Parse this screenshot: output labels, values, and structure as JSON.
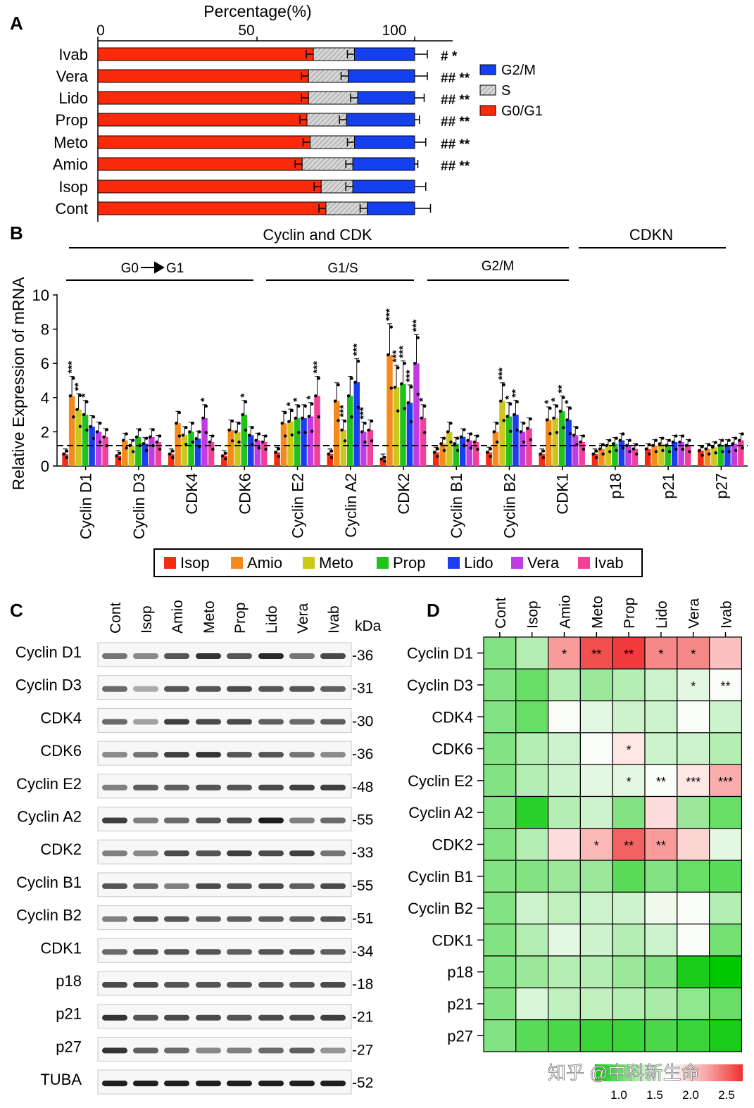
{
  "panel_labels": {
    "a": "A",
    "b": "B",
    "c": "C",
    "d": "D"
  },
  "colors": {
    "g0g1": "#fb2a0a",
    "s": "#cccccc",
    "g2m": "#1440f0",
    "isop": "#f52b12",
    "amio": "#f58a1c",
    "meto": "#cbc71c",
    "prop": "#22c21c",
    "lido": "#1c3ef0",
    "vera": "#c03ce0",
    "ivab": "#f0409a"
  },
  "chart_data": [
    {
      "type": "bar",
      "subtype": "stacked-horizontal",
      "title": "Percentage(%)",
      "xlim": [
        0,
        110
      ],
      "xticks": [
        "0",
        "50",
        "100"
      ],
      "categories": [
        "Ivab",
        "Vera",
        "Lido",
        "Prop",
        "Meto",
        "Amio",
        "Isop",
        "Cont"
      ],
      "series": [
        {
          "name": "G0/G1",
          "values": [
            68,
            66.5,
            66.5,
            66,
            67,
            64.5,
            70.5,
            72
          ]
        },
        {
          "name": "S",
          "values": [
            13,
            12.5,
            15.5,
            12.5,
            14,
            16,
            10,
            13
          ]
        },
        {
          "name": "G2/M",
          "values": [
            19,
            21,
            18,
            21.5,
            19,
            19.5,
            19.5,
            15
          ]
        }
      ],
      "error_top": [
        4,
        4,
        3,
        1.5,
        3.5,
        1,
        3.5,
        5
      ],
      "significance": [
        "#  *",
        "##  **",
        "##  **",
        "##  **",
        "##  **",
        "##  **",
        "",
        ""
      ],
      "legend": [
        "G2/M",
        "S",
        "G0/G1"
      ]
    },
    {
      "type": "bar",
      "subtype": "grouped-vertical",
      "ylabel": "Relative Expression of mRNA",
      "ylim": [
        0,
        10
      ],
      "yticks": [
        "0",
        "2",
        "4",
        "6",
        "8",
        "10"
      ],
      "reference_line": 1.2,
      "groups_header": {
        "cyclin_cdk": "Cyclin and CDK",
        "cdkn": "CDKN",
        "g0g1": "G0",
        "g0g1_end": "G1",
        "g1s": "G1/S",
        "g2m": "G2/M"
      },
      "categories": [
        "Cyclin D1",
        "Cyclin D3",
        "CDK4",
        "CDK6",
        "Cyclin E2",
        "Cyclin A2",
        "CDK2",
        "Cyclin B1",
        "Cyclin B2",
        "CDK1",
        "p18",
        "p21",
        "p27"
      ],
      "series": [
        {
          "name": "Isop",
          "values": [
            0.7,
            0.6,
            0.7,
            0.6,
            0.8,
            0.7,
            0.4,
            0.8,
            0.8,
            0.7,
            0.7,
            1.0,
            0.9
          ]
        },
        {
          "name": "Amio",
          "values": [
            4.1,
            1.5,
            2.5,
            2.1,
            2.5,
            3.8,
            6.5,
            1.3,
            2.0,
            2.7,
            1.0,
            1.2,
            1.0
          ]
        },
        {
          "name": "Meto",
          "values": [
            3.3,
            1.2,
            1.8,
            2.0,
            2.6,
            2.1,
            4.6,
            2.0,
            3.8,
            2.8,
            1.2,
            1.3,
            1.1
          ]
        },
        {
          "name": "Prop",
          "values": [
            3.0,
            1.7,
            2.0,
            3.0,
            2.8,
            4.1,
            4.8,
            1.3,
            2.9,
            3.2,
            1.3,
            1.2,
            1.2
          ]
        },
        {
          "name": "Lido",
          "values": [
            2.3,
            1.3,
            1.6,
            1.8,
            2.8,
            4.9,
            3.7,
            1.7,
            3.0,
            2.7,
            1.5,
            1.4,
            1.2
          ]
        },
        {
          "name": "Vera",
          "values": [
            2.0,
            1.7,
            2.8,
            1.5,
            2.9,
            2.0,
            6.0,
            1.5,
            2.0,
            1.8,
            1.2,
            1.4,
            1.3
          ]
        },
        {
          "name": "Ivab",
          "values": [
            1.7,
            1.4,
            1.4,
            1.4,
            4.1,
            2.1,
            2.8,
            1.4,
            2.2,
            1.4,
            1.0,
            1.2,
            1.5
          ]
        }
      ],
      "significance": [
        [
          "",
          "***",
          "**",
          "*",
          "",
          "",
          ""
        ],
        [
          "",
          "",
          "",
          "",
          "",
          "",
          ""
        ],
        [
          "",
          "",
          "",
          "",
          "",
          "*",
          ""
        ],
        [
          "",
          "",
          "",
          "*",
          "",
          "",
          ""
        ],
        [
          "",
          "",
          "*",
          "*",
          "",
          "*",
          "***"
        ],
        [
          "",
          "",
          "***",
          "",
          "***",
          "***",
          ""
        ],
        [
          "",
          "***",
          "***",
          "***",
          "***",
          "***",
          "*"
        ],
        [
          "",
          "",
          "",
          "",
          "",
          "",
          ""
        ],
        [
          "",
          "",
          "***",
          "*",
          "**",
          "",
          ""
        ],
        [
          "",
          "*",
          "*",
          "**",
          "*",
          "",
          ""
        ],
        [
          "",
          "",
          "",
          "",
          "",
          "",
          ""
        ],
        [
          "",
          "",
          "",
          "",
          "",
          "",
          ""
        ],
        [
          "",
          "",
          "",
          "",
          "",
          "",
          ""
        ]
      ],
      "legend": [
        "Isop",
        "Amio",
        "Meto",
        "Prop",
        "Lido",
        "Vera",
        "Ivab"
      ]
    },
    {
      "type": "heatmap",
      "columns": [
        "Cont",
        "Isop",
        "Amio",
        "Meto",
        "Prop",
        "Lido",
        "Vera",
        "Ivab"
      ],
      "rows": [
        "Cyclin D1",
        "Cyclin D3",
        "CDK4",
        "CDK6",
        "Cyclin E2",
        "Cyclin A2",
        "CDK2",
        "Cyclin B1",
        "Cyclin B2",
        "CDK1",
        "p18",
        "p21",
        "p27"
      ],
      "values": [
        [
          1.0,
          1.2,
          2.0,
          2.4,
          2.5,
          2.1,
          2.1,
          1.8
        ],
        [
          1.0,
          0.9,
          1.2,
          1.1,
          1.2,
          1.3,
          1.4,
          1.5
        ],
        [
          1.0,
          0.9,
          1.5,
          1.4,
          1.3,
          1.3,
          1.5,
          1.3
        ],
        [
          1.0,
          1.2,
          1.3,
          1.5,
          1.6,
          1.3,
          1.3,
          1.2
        ],
        [
          1.0,
          1.2,
          1.3,
          1.4,
          1.4,
          1.5,
          1.6,
          1.9
        ],
        [
          1.0,
          0.7,
          1.2,
          1.3,
          1.0,
          1.65,
          1.1,
          0.9
        ],
        [
          1.0,
          1.2,
          1.65,
          1.85,
          2.3,
          2.0,
          1.7,
          1.4
        ],
        [
          1.0,
          1.0,
          1.1,
          1.1,
          0.85,
          1.0,
          0.9,
          0.85
        ],
        [
          1.0,
          1.3,
          1.25,
          1.3,
          1.3,
          1.45,
          1.5,
          1.2
        ],
        [
          1.0,
          1.2,
          1.4,
          1.3,
          1.2,
          1.3,
          1.5,
          0.95
        ],
        [
          1.0,
          1.1,
          1.2,
          1.2,
          1.1,
          1.0,
          0.65,
          0.6
        ],
        [
          1.0,
          1.35,
          1.25,
          1.25,
          1.2,
          1.15,
          1.05,
          0.9
        ],
        [
          1.0,
          0.85,
          0.8,
          0.75,
          0.75,
          0.8,
          0.75,
          0.65
        ]
      ],
      "significance": [
        [
          "",
          "",
          "*",
          "**",
          "**",
          "*",
          "*",
          ""
        ],
        [
          "",
          "",
          "",
          "",
          "",
          "",
          "*",
          "**"
        ],
        [
          "",
          "",
          "",
          "",
          "",
          "",
          "",
          ""
        ],
        [
          "",
          "",
          "",
          "",
          "*",
          "",
          "",
          ""
        ],
        [
          "",
          "",
          "",
          "",
          "*",
          "**",
          "***",
          "***"
        ],
        [
          "",
          "",
          "",
          "",
          "",
          "",
          "",
          ""
        ],
        [
          "",
          "",
          "",
          "*",
          "**",
          "**",
          "",
          ""
        ],
        [
          "",
          "",
          "",
          "",
          "",
          "",
          "",
          ""
        ],
        [
          "",
          "",
          "",
          "",
          "",
          "",
          "",
          ""
        ],
        [
          "",
          "",
          "",
          "",
          "",
          "",
          "",
          ""
        ],
        [
          "",
          "",
          "",
          "",
          "",
          "",
          "",
          ""
        ],
        [
          "",
          "",
          "",
          "",
          "",
          "",
          "",
          ""
        ],
        [
          "",
          "",
          "",
          "",
          "",
          "",
          "",
          ""
        ]
      ],
      "colorbar_ticks": [
        "1.0",
        "1.5",
        "2.0",
        "2.5"
      ]
    }
  ],
  "western_blot": {
    "columns": [
      "Cont",
      "Isop",
      "Amio",
      "Meto",
      "Prop",
      "Lido",
      "Vera",
      "Ivab"
    ],
    "kda_label": "kDa",
    "rows": [
      {
        "name": "Cyclin D1",
        "kda": "-36",
        "intensity": [
          0.55,
          0.45,
          0.7,
          0.85,
          0.7,
          0.9,
          0.55,
          0.75
        ]
      },
      {
        "name": "Cyclin D3",
        "kda": "-31",
        "intensity": [
          0.6,
          0.3,
          0.7,
          0.7,
          0.75,
          0.7,
          0.7,
          0.65
        ]
      },
      {
        "name": "CDK4",
        "kda": "-30",
        "intensity": [
          0.6,
          0.35,
          0.8,
          0.75,
          0.75,
          0.65,
          0.6,
          0.65
        ]
      },
      {
        "name": "CDK6",
        "kda": "-36",
        "intensity": [
          0.45,
          0.55,
          0.8,
          0.85,
          0.7,
          0.7,
          0.55,
          0.45
        ]
      },
      {
        "name": "Cyclin E2",
        "kda": "-48",
        "intensity": [
          0.5,
          0.65,
          0.65,
          0.7,
          0.7,
          0.75,
          0.8,
          0.8
        ]
      },
      {
        "name": "Cyclin A2",
        "kda": "-55",
        "intensity": [
          0.8,
          0.5,
          0.6,
          0.7,
          0.75,
          0.95,
          0.5,
          0.6
        ]
      },
      {
        "name": "CDK2",
        "kda": "-33",
        "intensity": [
          0.5,
          0.45,
          0.75,
          0.7,
          0.8,
          0.75,
          0.8,
          0.55
        ]
      },
      {
        "name": "Cyclin B1",
        "kda": "-55",
        "intensity": [
          0.7,
          0.6,
          0.5,
          0.75,
          0.7,
          0.75,
          0.65,
          0.75
        ]
      },
      {
        "name": "Cyclin B2",
        "kda": "-51",
        "intensity": [
          0.5,
          0.7,
          0.7,
          0.65,
          0.65,
          0.65,
          0.65,
          0.7
        ]
      },
      {
        "name": "CDK1",
        "kda": "-34",
        "intensity": [
          0.6,
          0.7,
          0.7,
          0.7,
          0.65,
          0.7,
          0.7,
          0.65
        ]
      },
      {
        "name": "p18",
        "kda": "-18",
        "intensity": [
          0.75,
          0.75,
          0.7,
          0.7,
          0.7,
          0.7,
          0.7,
          0.75
        ]
      },
      {
        "name": "p21",
        "kda": "-21",
        "intensity": [
          0.85,
          0.7,
          0.75,
          0.75,
          0.7,
          0.75,
          0.75,
          0.8
        ]
      },
      {
        "name": "p27",
        "kda": "-27",
        "intensity": [
          0.85,
          0.65,
          0.6,
          0.45,
          0.5,
          0.6,
          0.65,
          0.4
        ]
      },
      {
        "name": "TUBA",
        "kda": "-52",
        "intensity": [
          0.95,
          0.95,
          0.95,
          0.95,
          0.95,
          0.95,
          0.95,
          0.95
        ]
      }
    ]
  },
  "watermark": "知乎 @中科新生命"
}
